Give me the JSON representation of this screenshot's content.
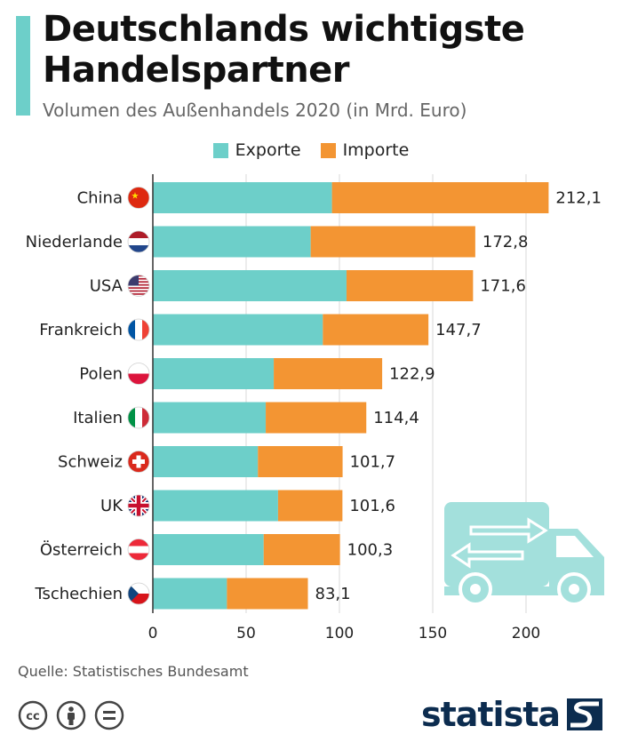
{
  "header": {
    "title": "Deutschlands wichtigste Handelspartner",
    "subtitle": "Volumen des Außenhandels 2020 (in Mrd. Euro)"
  },
  "footer": {
    "source": "Quelle: Statistisches Bundesamt",
    "brand": "statista",
    "license_icons": [
      "cc-icon",
      "attribution-icon",
      "no-derivatives-icon"
    ]
  },
  "colors": {
    "exports": "#6dcfc9",
    "imports": "#f39533",
    "accent": "#6dcfc9",
    "grid": "#d9d9d9",
    "brand": "#0c2c4f"
  },
  "chart_data": {
    "type": "bar",
    "orientation": "horizontal",
    "stacked": true,
    "title": "Deutschlands wichtigste Handelspartner",
    "subtitle": "Volumen des Außenhandels 2020 (in Mrd. Euro)",
    "categories": [
      "China",
      "Niederlande",
      "USA",
      "Frankreich",
      "Polen",
      "Italien",
      "Schweiz",
      "UK",
      "Österreich",
      "Tschechien"
    ],
    "flags": [
      "china-flag-icon",
      "netherlands-flag-icon",
      "usa-flag-icon",
      "france-flag-icon",
      "poland-flag-icon",
      "italy-flag-icon",
      "switzerland-flag-icon",
      "uk-flag-icon",
      "austria-flag-icon",
      "czechia-flag-icon"
    ],
    "series": [
      {
        "name": "Exporte",
        "values": [
          96.0,
          84.6,
          103.8,
          91.1,
          64.8,
          60.5,
          56.3,
          67.1,
          59.4,
          39.7
        ]
      },
      {
        "name": "Importe",
        "values": [
          116.1,
          88.2,
          67.8,
          56.6,
          58.1,
          53.9,
          45.4,
          34.5,
          40.9,
          43.4
        ]
      }
    ],
    "totals": [
      212.1,
      172.8,
      171.6,
      147.7,
      122.9,
      114.4,
      101.7,
      101.6,
      100.3,
      83.1
    ],
    "total_labels": [
      "212,1",
      "172,8",
      "171,6",
      "147,7",
      "122,9",
      "114,4",
      "101,7",
      "101,6",
      "100,3",
      "83,1"
    ],
    "xticks": [
      0,
      50,
      100,
      150,
      200
    ],
    "xlim": [
      0,
      240
    ],
    "grid": true,
    "legend": "top-center"
  }
}
